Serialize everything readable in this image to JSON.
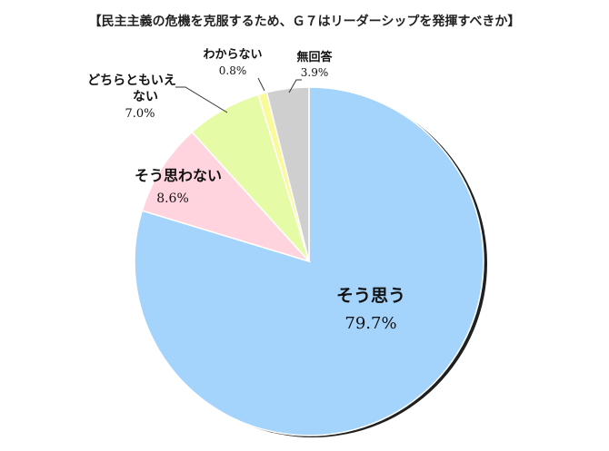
{
  "chart_data": {
    "type": "pie",
    "title": "【民主主義の危機を克服するため、Ｇ７はリーダーシップを発揮すべきか】",
    "start_angle_deg": 0,
    "direction": "clockwise",
    "slices": [
      {
        "label": "そう思う",
        "value": 79.7,
        "value_label": "79.7%",
        "color": "#a4d3fb"
      },
      {
        "label": "そう思わない",
        "value": 8.6,
        "value_label": "8.6%",
        "color": "#ffd4de"
      },
      {
        "label": "どちらともいえない",
        "label_lines": [
          "どちらともいえ",
          "ない"
        ],
        "value": 7.0,
        "value_label": "7.0%",
        "color": "#e6fba6"
      },
      {
        "label": "わからない",
        "value": 0.8,
        "value_label": "0.8%",
        "color": "#fafa9a"
      },
      {
        "label": "無回答",
        "value": 3.9,
        "value_label": "3.9%",
        "color": "#cfcfcf"
      }
    ]
  }
}
